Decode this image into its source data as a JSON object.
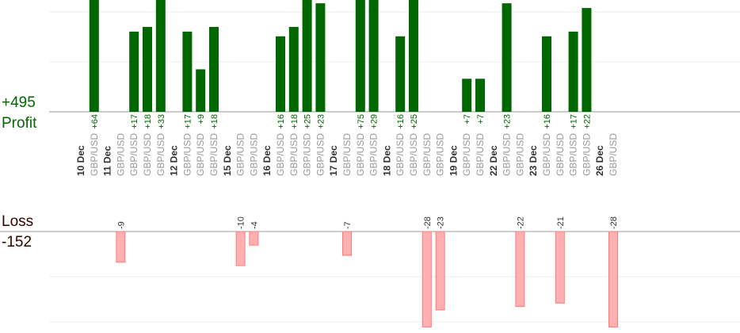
{
  "summary": {
    "profit_total": "+495",
    "profit_label": "Profit",
    "loss_label": "Loss",
    "loss_total": "-152"
  },
  "colors": {
    "profit_bar": "#006600",
    "profit_text": "#006600",
    "loss_bar": "#ffb0b0",
    "loss_border": "#ff7a7a",
    "loss_text": "#330000",
    "date_text": "#333333",
    "pair_text": "#999999",
    "grid": "#eeeeee",
    "baseline": "#999999"
  },
  "chart_data": {
    "type": "bar",
    "title": "",
    "xlabel": "",
    "ylabel": "",
    "groups": [
      {
        "date": "10 Dec",
        "trades": [
          {
            "pair": "GBP/USD",
            "value": 64
          }
        ]
      },
      {
        "date": "11 Dec",
        "trades": [
          {
            "pair": "GBP/USD",
            "value": -9
          },
          {
            "pair": "GBP/USD",
            "value": 17
          },
          {
            "pair": "GBP/USD",
            "value": 18
          },
          {
            "pair": "GBP/USD",
            "value": 33
          }
        ]
      },
      {
        "date": "12 Dec",
        "trades": [
          {
            "pair": "GBP/USD",
            "value": 17
          },
          {
            "pair": "GBP/USD",
            "value": 9
          },
          {
            "pair": "GBP/USD",
            "value": 18
          }
        ]
      },
      {
        "date": "15 Dec",
        "trades": [
          {
            "pair": "GBP/USD",
            "value": -10
          },
          {
            "pair": "GBP/USD",
            "value": -4
          }
        ]
      },
      {
        "date": "16 Dec",
        "trades": [
          {
            "pair": "GBP/USD",
            "value": 16
          },
          {
            "pair": "GBP/USD",
            "value": 18
          },
          {
            "pair": "GBP/USD",
            "value": 25
          },
          {
            "pair": "GBP/USD",
            "value": 23
          }
        ]
      },
      {
        "date": "17 Dec",
        "trades": [
          {
            "pair": "GBP/USD",
            "value": -7
          },
          {
            "pair": "GBP/USD",
            "value": 75
          },
          {
            "pair": "GBP/USD",
            "value": 29
          }
        ]
      },
      {
        "date": "18 Dec",
        "trades": [
          {
            "pair": "GBP/USD",
            "value": 16
          },
          {
            "pair": "GBP/USD",
            "value": 25
          },
          {
            "pair": "GBP/USD",
            "value": -28
          },
          {
            "pair": "GBP/USD",
            "value": -23
          }
        ]
      },
      {
        "date": "19 Dec",
        "trades": [
          {
            "pair": "GBP/USD",
            "value": 7
          },
          {
            "pair": "GBP/USD",
            "value": 7
          }
        ]
      },
      {
        "date": "22 Dec",
        "trades": [
          {
            "pair": "GBP/USD",
            "value": 23
          },
          {
            "pair": "GBP/USD",
            "value": -22
          }
        ]
      },
      {
        "date": "23 Dec",
        "trades": [
          {
            "pair": "GBP/USD",
            "value": 16
          },
          {
            "pair": "GBP/USD",
            "value": -21
          },
          {
            "pair": "GBP/USD",
            "value": 17
          },
          {
            "pair": "GBP/USD",
            "value": 22
          }
        ]
      },
      {
        "date": "26 Dec",
        "trades": [
          {
            "pair": "GBP/USD",
            "value": -28
          }
        ]
      }
    ],
    "profit_ylim": [
      0,
      23
    ],
    "loss_ylim": [
      -28,
      0
    ],
    "grid": true,
    "legend": "none"
  }
}
